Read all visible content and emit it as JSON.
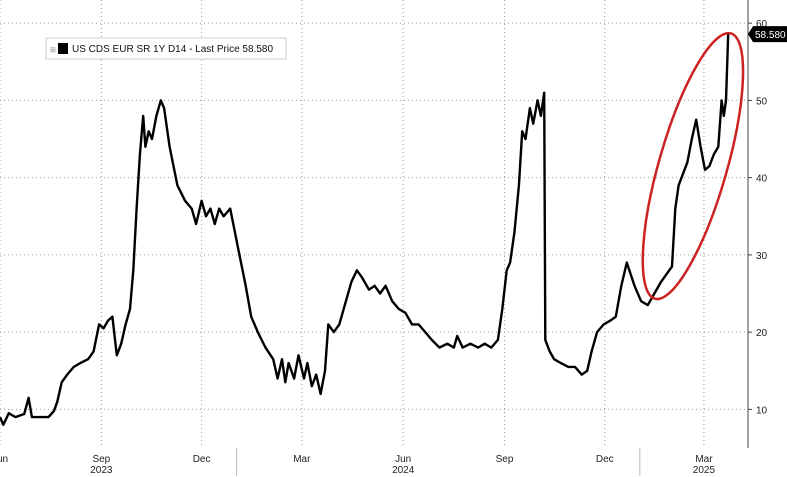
{
  "chart_data": {
    "type": "line",
    "legend": "US CDS EUR SR 1Y D14 - Last Price 58.580",
    "last_price_label": "58.580",
    "last_value": 58.58,
    "y_ticks": [
      10,
      20,
      30,
      40,
      50,
      60
    ],
    "ylim": [
      5,
      63
    ],
    "x_tick_labels": [
      {
        "label": "Jun",
        "date": "2023-06-01"
      },
      {
        "label": "Sep",
        "date": "2023-09-01"
      },
      {
        "label": "Dec",
        "date": "2023-12-01"
      },
      {
        "label": "Mar",
        "date": "2024-03-01"
      },
      {
        "label": "Jun",
        "date": "2024-06-01"
      },
      {
        "label": "Sep",
        "date": "2024-09-01"
      },
      {
        "label": "Dec",
        "date": "2024-12-01"
      },
      {
        "label": "Mar",
        "date": "2025-03-01"
      }
    ],
    "year_labels": [
      {
        "label": "2023",
        "date": "2023-09-01"
      },
      {
        "label": "2024",
        "date": "2024-06-01"
      },
      {
        "label": "2025",
        "date": "2025-03-01"
      }
    ],
    "xlim": [
      "2023-06-01",
      "2025-04-10"
    ],
    "grid": true,
    "annotation": {
      "type": "ellipse",
      "color": "#cc2222"
    },
    "series": [
      {
        "color": "#000000",
        "points": [
          [
            "2023-06-01",
            9.0
          ],
          [
            "2023-06-04",
            8.0
          ],
          [
            "2023-06-09",
            9.5
          ],
          [
            "2023-06-15",
            9.0
          ],
          [
            "2023-06-23",
            9.4
          ],
          [
            "2023-06-27",
            11.5
          ],
          [
            "2023-06-30",
            9.0
          ],
          [
            "2023-07-08",
            9.0
          ],
          [
            "2023-07-15",
            9.0
          ],
          [
            "2023-07-20",
            9.8
          ],
          [
            "2023-07-23",
            11.0
          ],
          [
            "2023-07-27",
            13.5
          ],
          [
            "2023-08-01",
            14.5
          ],
          [
            "2023-08-07",
            15.5
          ],
          [
            "2023-08-13",
            16.0
          ],
          [
            "2023-08-20",
            16.5
          ],
          [
            "2023-08-25",
            17.5
          ],
          [
            "2023-08-30",
            21.0
          ],
          [
            "2023-09-03",
            20.5
          ],
          [
            "2023-09-07",
            21.5
          ],
          [
            "2023-09-11",
            22.0
          ],
          [
            "2023-09-15",
            17.0
          ],
          [
            "2023-09-19",
            18.5
          ],
          [
            "2023-09-23",
            21.0
          ],
          [
            "2023-09-27",
            23.0
          ],
          [
            "2023-09-30",
            28.0
          ],
          [
            "2023-10-03",
            36.0
          ],
          [
            "2023-10-06",
            43.0
          ],
          [
            "2023-10-09",
            48.0
          ],
          [
            "2023-10-11",
            44.0
          ],
          [
            "2023-10-14",
            46.0
          ],
          [
            "2023-10-17",
            45.0
          ],
          [
            "2023-10-21",
            48.0
          ],
          [
            "2023-10-25",
            50.0
          ],
          [
            "2023-10-28",
            49.0
          ],
          [
            "2023-11-02",
            44.0
          ],
          [
            "2023-11-09",
            39.0
          ],
          [
            "2023-11-16",
            37.0
          ],
          [
            "2023-11-22",
            36.0
          ],
          [
            "2023-11-26",
            34.0
          ],
          [
            "2023-12-01",
            37.0
          ],
          [
            "2023-12-05",
            35.0
          ],
          [
            "2023-12-09",
            36.0
          ],
          [
            "2023-12-13",
            34.0
          ],
          [
            "2023-12-17",
            36.0
          ],
          [
            "2023-12-21",
            35.0
          ],
          [
            "2023-12-27",
            36.0
          ],
          [
            "2024-01-03",
            31.0
          ],
          [
            "2024-01-10",
            26.0
          ],
          [
            "2024-01-15",
            22.0
          ],
          [
            "2024-01-21",
            20.0
          ],
          [
            "2024-01-28",
            18.0
          ],
          [
            "2024-02-04",
            16.5
          ],
          [
            "2024-02-08",
            14.0
          ],
          [
            "2024-02-12",
            16.5
          ],
          [
            "2024-02-15",
            13.5
          ],
          [
            "2024-02-18",
            16.0
          ],
          [
            "2024-02-23",
            14.0
          ],
          [
            "2024-02-27",
            17.0
          ],
          [
            "2024-03-03",
            14.0
          ],
          [
            "2024-03-06",
            16.0
          ],
          [
            "2024-03-10",
            13.0
          ],
          [
            "2024-03-14",
            14.5
          ],
          [
            "2024-03-18",
            12.0
          ],
          [
            "2024-03-22",
            15.0
          ],
          [
            "2024-03-25",
            21.0
          ],
          [
            "2024-03-30",
            20.0
          ],
          [
            "2024-04-04",
            21.0
          ],
          [
            "2024-04-10",
            24.0
          ],
          [
            "2024-04-15",
            26.5
          ],
          [
            "2024-04-20",
            28.0
          ],
          [
            "2024-04-25",
            27.0
          ],
          [
            "2024-05-01",
            25.5
          ],
          [
            "2024-05-06",
            26.0
          ],
          [
            "2024-05-11",
            25.0
          ],
          [
            "2024-05-16",
            26.0
          ],
          [
            "2024-05-22",
            24.0
          ],
          [
            "2024-05-28",
            23.0
          ],
          [
            "2024-06-03",
            22.5
          ],
          [
            "2024-06-09",
            21.0
          ],
          [
            "2024-06-15",
            21.0
          ],
          [
            "2024-06-21",
            20.0
          ],
          [
            "2024-06-27",
            19.0
          ],
          [
            "2024-07-04",
            18.0
          ],
          [
            "2024-07-11",
            18.5
          ],
          [
            "2024-07-17",
            18.0
          ],
          [
            "2024-07-20",
            19.5
          ],
          [
            "2024-07-25",
            18.0
          ],
          [
            "2024-08-01",
            18.5
          ],
          [
            "2024-08-08",
            18.0
          ],
          [
            "2024-08-14",
            18.5
          ],
          [
            "2024-08-20",
            18.0
          ],
          [
            "2024-08-26",
            19.0
          ],
          [
            "2024-08-30",
            23.0
          ],
          [
            "2024-09-03",
            28.0
          ],
          [
            "2024-09-06",
            29.0
          ],
          [
            "2024-09-10",
            33.0
          ],
          [
            "2024-09-14",
            39.0
          ],
          [
            "2024-09-17",
            46.0
          ],
          [
            "2024-09-20",
            45.0
          ],
          [
            "2024-09-24",
            49.0
          ],
          [
            "2024-09-27",
            47.0
          ],
          [
            "2024-10-01",
            50.0
          ],
          [
            "2024-10-04",
            48.0
          ],
          [
            "2024-10-07",
            51.0
          ],
          [
            "2024-10-08",
            19.0
          ],
          [
            "2024-10-12",
            17.5
          ],
          [
            "2024-10-16",
            16.5
          ],
          [
            "2024-10-22",
            16.0
          ],
          [
            "2024-10-29",
            15.5
          ],
          [
            "2024-11-04",
            15.5
          ],
          [
            "2024-11-10",
            14.5
          ],
          [
            "2024-11-15",
            15.0
          ],
          [
            "2024-11-19",
            17.5
          ],
          [
            "2024-11-24",
            20.0
          ],
          [
            "2024-11-30",
            21.0
          ],
          [
            "2024-12-06",
            21.5
          ],
          [
            "2024-12-11",
            22.0
          ],
          [
            "2024-12-16",
            26.0
          ],
          [
            "2024-12-21",
            29.0
          ],
          [
            "2024-12-28",
            26.0
          ],
          [
            "2025-01-03",
            24.0
          ],
          [
            "2025-01-09",
            23.5
          ],
          [
            "2025-01-15",
            25.0
          ],
          [
            "2025-01-21",
            26.5
          ],
          [
            "2025-01-26",
            27.5
          ],
          [
            "2025-01-31",
            28.5
          ],
          [
            "2025-02-03",
            36.0
          ],
          [
            "2025-02-06",
            39.0
          ],
          [
            "2025-02-10",
            40.5
          ],
          [
            "2025-02-14",
            42.0
          ],
          [
            "2025-02-18",
            45.0
          ],
          [
            "2025-02-22",
            47.5
          ],
          [
            "2025-02-26",
            44.0
          ],
          [
            "2025-03-02",
            41.0
          ],
          [
            "2025-03-06",
            41.5
          ],
          [
            "2025-03-10",
            43.0
          ],
          [
            "2025-03-14",
            44.0
          ],
          [
            "2025-03-17",
            50.0
          ],
          [
            "2025-03-19",
            48.0
          ],
          [
            "2025-03-21",
            50.0
          ],
          [
            "2025-03-23",
            58.58
          ]
        ]
      }
    ]
  }
}
